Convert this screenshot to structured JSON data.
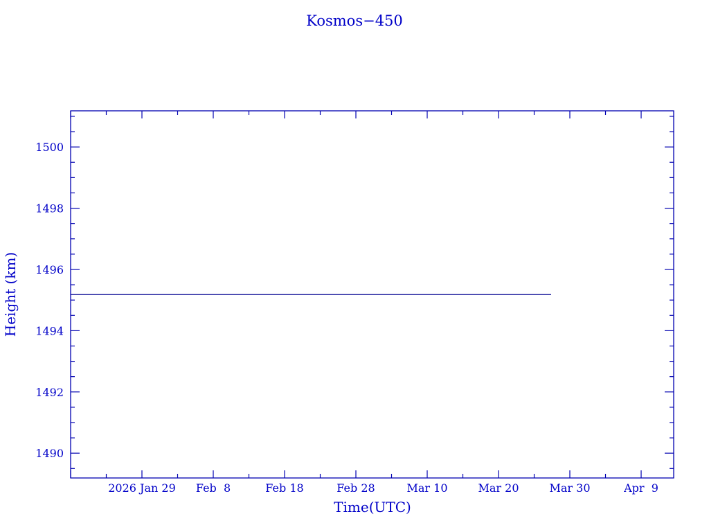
{
  "chart_data": {
    "type": "line",
    "title": "Kosmos−450",
    "xlabel": "Time(UTC)",
    "ylabel": "Height (km)",
    "xlim": [
      "2026-01-19T00:00",
      "2026-04-13T13:30"
    ],
    "ylim": [
      1489.19,
      1501.18
    ],
    "x_ticks": [
      {
        "date": "2026-01-29",
        "label": "2026 Jan 29"
      },
      {
        "date": "2026-02-08",
        "label": "Feb  8"
      },
      {
        "date": "2026-02-18",
        "label": "Feb 18"
      },
      {
        "date": "2026-02-28",
        "label": "Feb 28"
      },
      {
        "date": "2026-03-10",
        "label": "Mar 10"
      },
      {
        "date": "2026-03-20",
        "label": "Mar 20"
      },
      {
        "date": "2026-03-30",
        "label": "Mar 30"
      },
      {
        "date": "2026-04-09",
        "label": "Apr  9"
      }
    ],
    "x_minor_days": 5,
    "y_ticks": [
      1490,
      1492,
      1494,
      1496,
      1498,
      1500
    ],
    "y_minor": 0.5,
    "grid": false,
    "series": [
      {
        "x": [
          "2026-01-19T00:00",
          "2026-03-27T09:00"
        ],
        "y": [
          1495.18,
          1495.18
        ],
        "color": "#000090"
      }
    ],
    "colors": {
      "axes": "#0000b0",
      "text": "#0000c8"
    }
  }
}
